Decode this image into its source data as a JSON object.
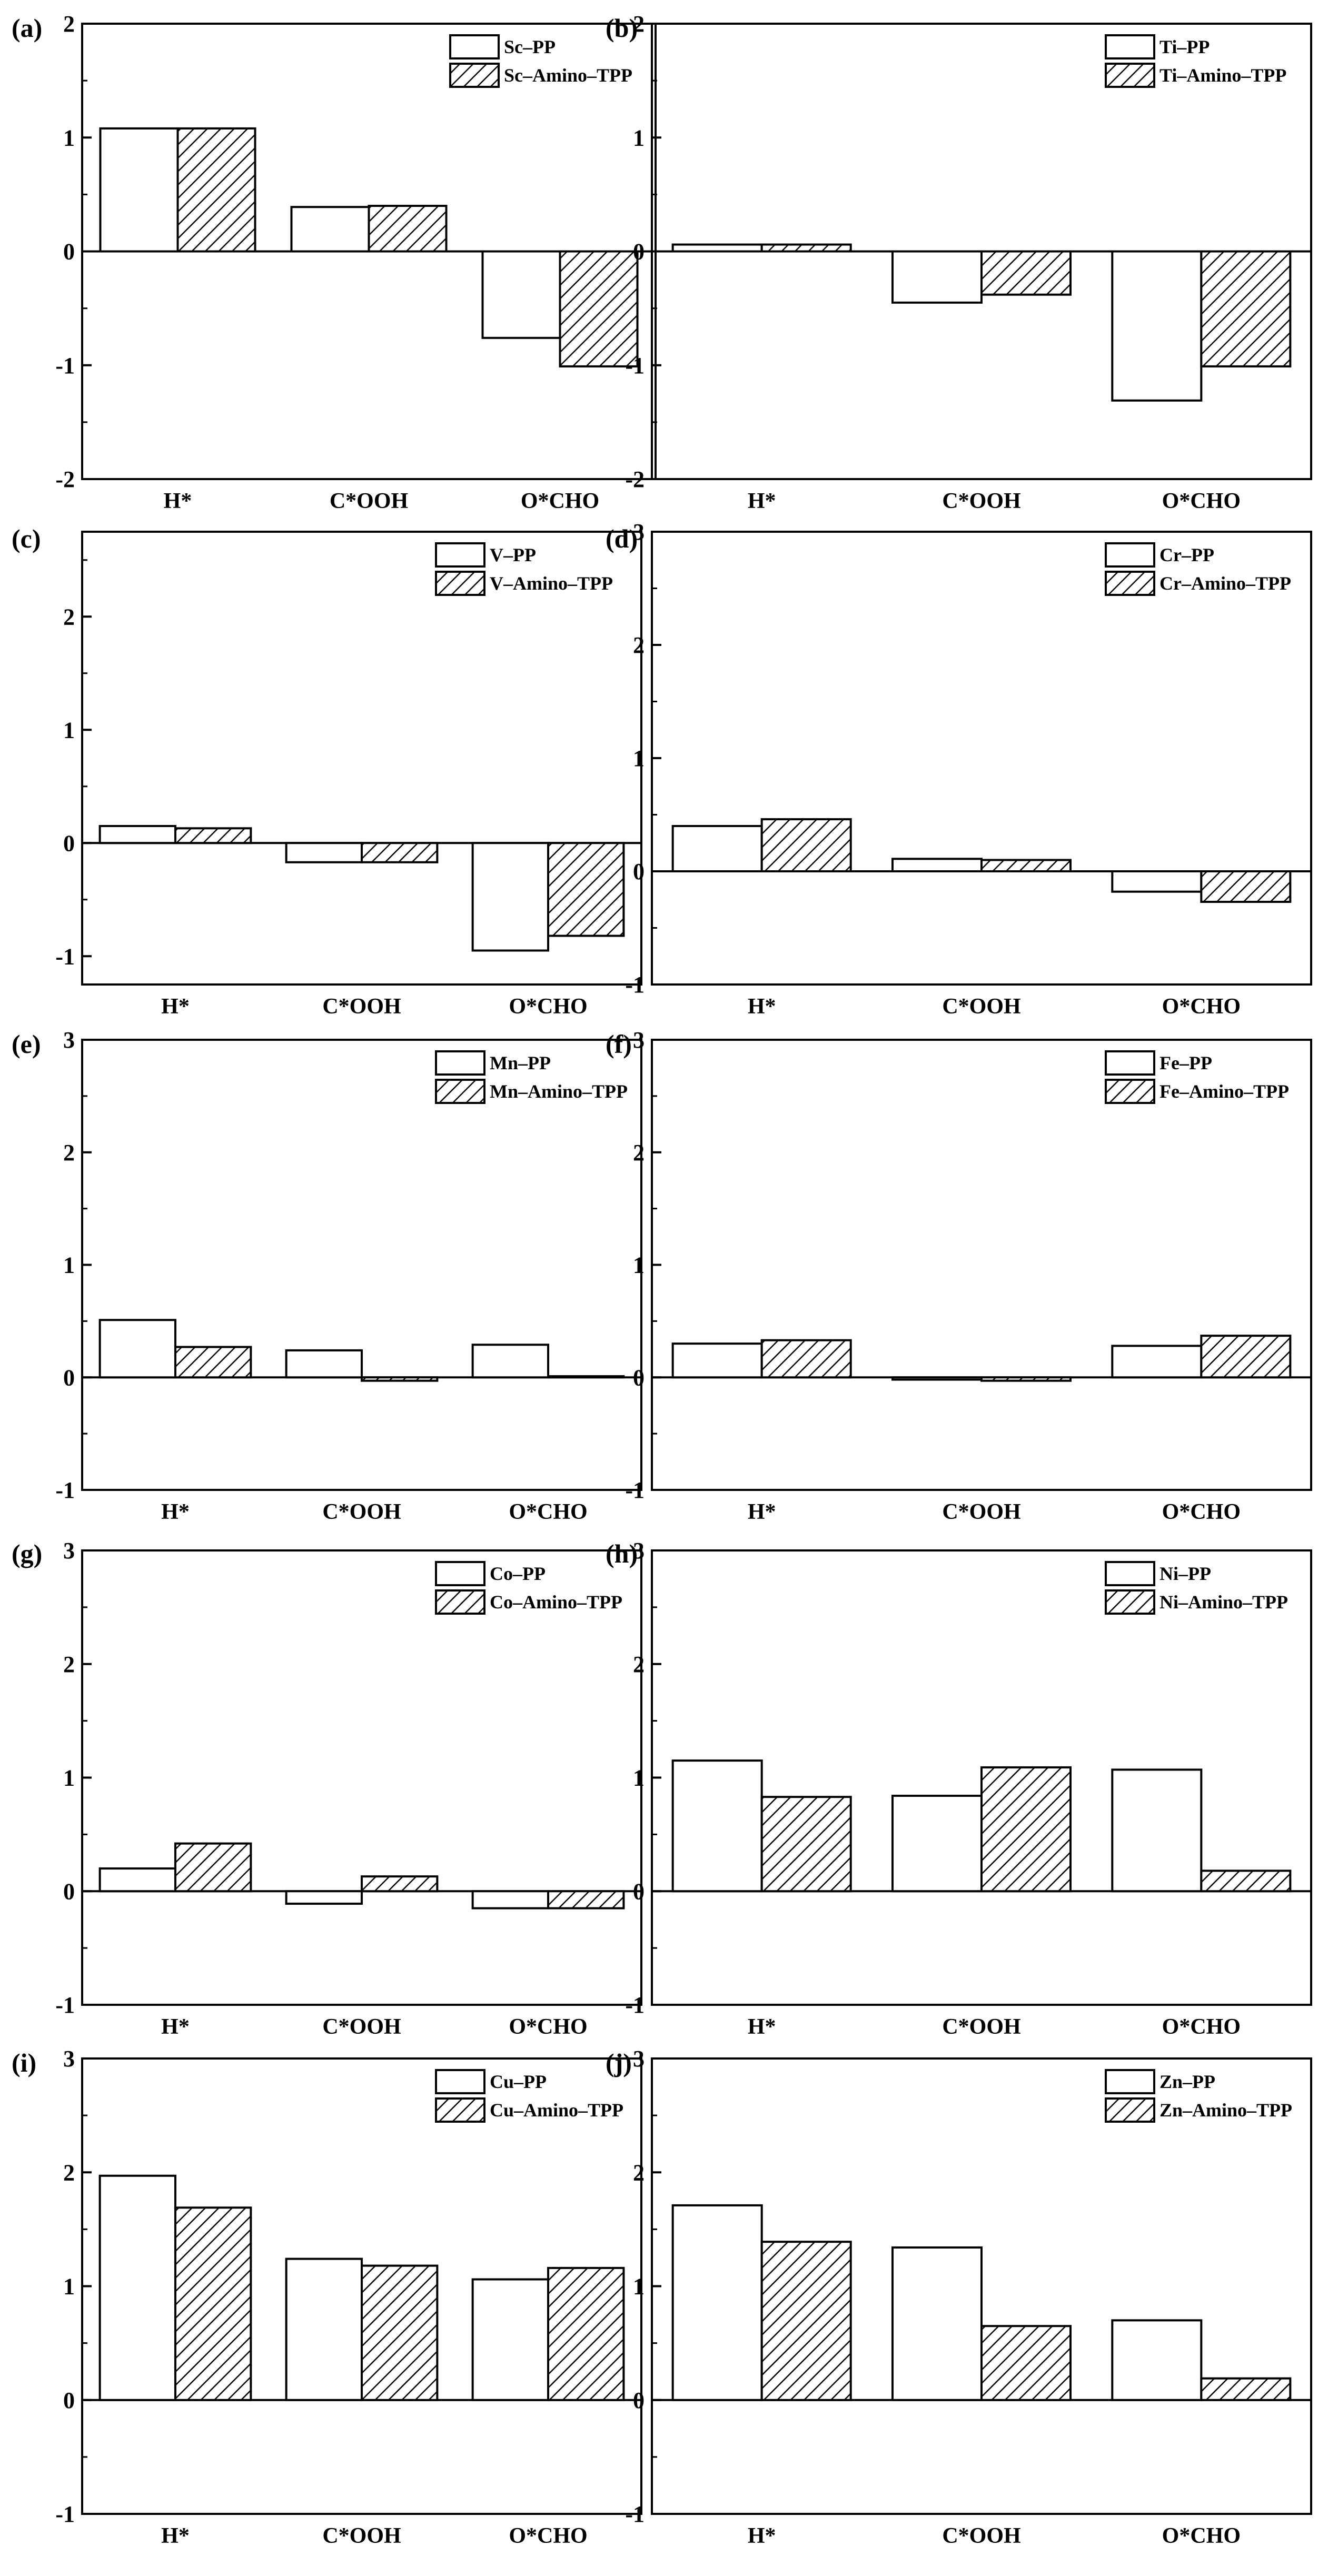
{
  "figure": {
    "background": "#ffffff",
    "bar_stroke": "#000000",
    "bar_fill_pp": "#ffffff",
    "hatch_color": "#000000"
  },
  "chart_data": [
    {
      "panel": "(a)",
      "type": "bar",
      "categories": [
        "H*",
        "C*OOH",
        "O*CHO"
      ],
      "ylim": [
        -2,
        2
      ],
      "yticks": [
        -2,
        -1,
        0,
        1,
        2
      ],
      "legend_position": "top-right",
      "series": [
        {
          "name": "Sc–PP",
          "pattern": "open",
          "values": [
            1.08,
            0.39,
            -0.76
          ]
        },
        {
          "name": "Sc–Amino–TPP",
          "pattern": "hatched",
          "values": [
            1.08,
            0.4,
            -1.01
          ]
        }
      ]
    },
    {
      "panel": "(b)",
      "type": "bar",
      "categories": [
        "H*",
        "C*OOH",
        "O*CHO"
      ],
      "ylim": [
        -2,
        2
      ],
      "yticks": [
        -2,
        -1,
        0,
        1,
        2
      ],
      "legend_position": "top-right",
      "series": [
        {
          "name": "Ti–PP",
          "pattern": "open",
          "values": [
            0.06,
            -0.45,
            -1.31
          ]
        },
        {
          "name": "Ti–Amino–TPP",
          "pattern": "hatched",
          "values": [
            0.06,
            -0.38,
            -1.01
          ]
        }
      ]
    },
    {
      "panel": "(c)",
      "type": "bar",
      "categories": [
        "H*",
        "C*OOH",
        "O*CHO"
      ],
      "ylim": [
        -1.25,
        2.75
      ],
      "yticks": [
        -1,
        0,
        1,
        2
      ],
      "legend_position": "top-right",
      "series": [
        {
          "name": "V–PP",
          "pattern": "open",
          "values": [
            0.15,
            -0.17,
            -0.95
          ]
        },
        {
          "name": "V–Amino–TPP",
          "pattern": "hatched",
          "values": [
            0.13,
            -0.17,
            -0.82
          ]
        }
      ]
    },
    {
      "panel": "(d)",
      "type": "bar",
      "categories": [
        "H*",
        "C*OOH",
        "O*CHO"
      ],
      "ylim": [
        -1,
        3
      ],
      "yticks": [
        -1,
        0,
        1,
        2,
        3
      ],
      "legend_position": "top-right",
      "series": [
        {
          "name": "Cr–PP",
          "pattern": "open",
          "values": [
            0.4,
            0.11,
            -0.18
          ]
        },
        {
          "name": "Cr–Amino–TPP",
          "pattern": "hatched",
          "values": [
            0.46,
            0.1,
            -0.27
          ]
        }
      ]
    },
    {
      "panel": "(e)",
      "type": "bar",
      "categories": [
        "H*",
        "C*OOH",
        "O*CHO"
      ],
      "ylim": [
        -1,
        3
      ],
      "yticks": [
        -1,
        0,
        1,
        2,
        3
      ],
      "legend_position": "top-right",
      "series": [
        {
          "name": "Mn–PP",
          "pattern": "open",
          "values": [
            0.51,
            0.24,
            0.29
          ]
        },
        {
          "name": "Mn–Amino–TPP",
          "pattern": "hatched",
          "values": [
            0.27,
            -0.03,
            0.01
          ]
        }
      ]
    },
    {
      "panel": "(f)",
      "type": "bar",
      "categories": [
        "H*",
        "C*OOH",
        "O*CHO"
      ],
      "ylim": [
        -1,
        3
      ],
      "yticks": [
        -1,
        0,
        1,
        2,
        3
      ],
      "legend_position": "top-right",
      "series": [
        {
          "name": "Fe–PP",
          "pattern": "open",
          "values": [
            0.3,
            -0.02,
            0.28
          ]
        },
        {
          "name": "Fe–Amino–TPP",
          "pattern": "hatched",
          "values": [
            0.33,
            -0.03,
            0.37
          ]
        }
      ]
    },
    {
      "panel": "(g)",
      "type": "bar",
      "categories": [
        "H*",
        "C*OOH",
        "O*CHO"
      ],
      "ylim": [
        -1,
        3
      ],
      "yticks": [
        -1,
        0,
        1,
        2,
        3
      ],
      "legend_position": "top-right",
      "series": [
        {
          "name": "Co–PP",
          "pattern": "open",
          "values": [
            0.2,
            -0.11,
            -0.15
          ]
        },
        {
          "name": "Co–Amino–TPP",
          "pattern": "hatched",
          "values": [
            0.42,
            0.13,
            -0.15
          ]
        }
      ]
    },
    {
      "panel": "(h)",
      "type": "bar",
      "categories": [
        "H*",
        "C*OOH",
        "O*CHO"
      ],
      "ylim": [
        -1,
        3
      ],
      "yticks": [
        -1,
        0,
        1,
        2,
        3
      ],
      "legend_position": "top-right",
      "series": [
        {
          "name": "Ni–PP",
          "pattern": "open",
          "values": [
            1.15,
            0.84,
            1.07
          ]
        },
        {
          "name": "Ni–Amino–TPP",
          "pattern": "hatched",
          "values": [
            0.83,
            1.09,
            0.18
          ]
        }
      ]
    },
    {
      "panel": "(i)",
      "type": "bar",
      "categories": [
        "H*",
        "C*OOH",
        "O*CHO"
      ],
      "ylim": [
        -1,
        3
      ],
      "yticks": [
        -1,
        0,
        1,
        2,
        3
      ],
      "legend_position": "top-right",
      "series": [
        {
          "name": "Cu–PP",
          "pattern": "open",
          "values": [
            1.97,
            1.24,
            1.06
          ]
        },
        {
          "name": "Cu–Amino–TPP",
          "pattern": "hatched",
          "values": [
            1.69,
            1.18,
            1.16
          ]
        }
      ]
    },
    {
      "panel": "(j)",
      "type": "bar",
      "categories": [
        "H*",
        "C*OOH",
        "O*CHO"
      ],
      "ylim": [
        -1,
        3
      ],
      "yticks": [
        -1,
        0,
        1,
        2,
        3
      ],
      "legend_position": "top-right",
      "series": [
        {
          "name": "Zn–PP",
          "pattern": "open",
          "values": [
            1.71,
            1.34,
            0.7
          ]
        },
        {
          "name": "Zn–Amino–TPP",
          "pattern": "hatched",
          "values": [
            1.39,
            0.65,
            0.19
          ]
        }
      ]
    }
  ]
}
